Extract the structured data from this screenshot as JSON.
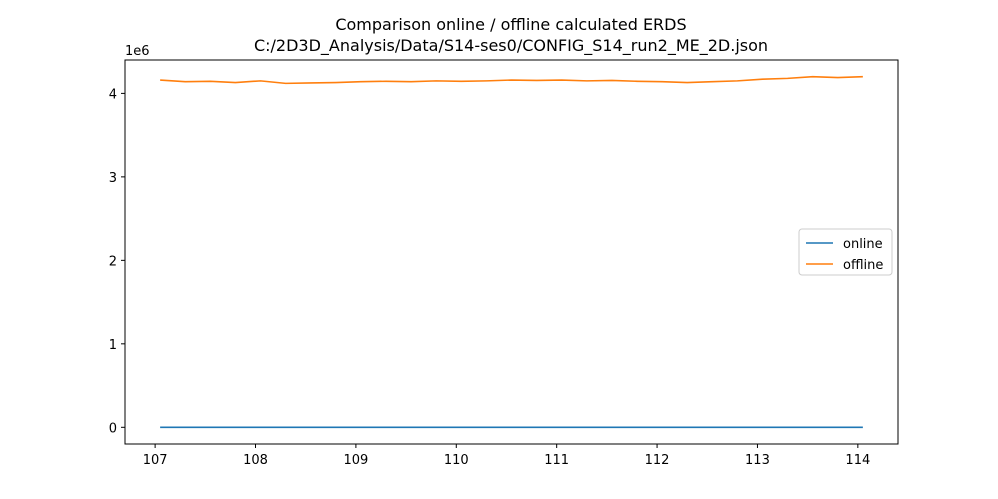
{
  "chart_data": {
    "type": "line",
    "title": [
      "Comparison online / offline calculated ERDS",
      "C:/2D3D_Analysis/Data/S14-ses0/CONFIG_S14_run2_ME_2D.json"
    ],
    "xlabel": "",
    "ylabel": "",
    "xlim": [
      106.7,
      114.4
    ],
    "ylim": [
      -200000,
      4400000
    ],
    "y_offset_label": "1e6",
    "x_ticks": [
      107,
      108,
      109,
      110,
      111,
      112,
      113,
      114
    ],
    "x_tick_labels": [
      "107",
      "108",
      "109",
      "110",
      "111",
      "112",
      "113",
      "114"
    ],
    "y_ticks": [
      0,
      1000000,
      2000000,
      3000000,
      4000000
    ],
    "y_tick_labels": [
      "0",
      "1",
      "2",
      "3",
      "4"
    ],
    "legend_position": "center-right",
    "grid": false,
    "series": [
      {
        "name": "online",
        "color": "#1f77b4",
        "x": [
          107.05,
          114.05
        ],
        "y": [
          0,
          0
        ]
      },
      {
        "name": "offline",
        "color": "#ff7f0e",
        "x": [
          107.05,
          107.3,
          107.55,
          107.8,
          108.05,
          108.3,
          108.55,
          108.8,
          109.05,
          109.3,
          109.55,
          109.8,
          110.05,
          110.3,
          110.55,
          110.8,
          111.05,
          111.3,
          111.55,
          111.8,
          112.05,
          112.3,
          112.55,
          112.8,
          113.05,
          113.3,
          113.55,
          113.8,
          114.05
        ],
        "y": [
          4160000,
          4140000,
          4145000,
          4130000,
          4150000,
          4120000,
          4125000,
          4130000,
          4140000,
          4145000,
          4140000,
          4150000,
          4145000,
          4150000,
          4160000,
          4155000,
          4160000,
          4150000,
          4155000,
          4145000,
          4140000,
          4130000,
          4140000,
          4150000,
          4170000,
          4180000,
          4200000,
          4190000,
          4200000
        ]
      }
    ]
  }
}
